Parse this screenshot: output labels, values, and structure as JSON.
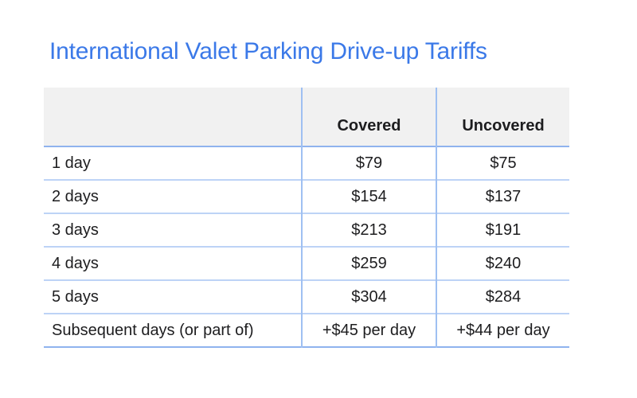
{
  "title": {
    "text": "International Valet Parking Drive-up Tariffs"
  },
  "theme": {
    "background": "#ffffff",
    "title_color": "#3b79e8",
    "text_color": "#1d1d1f",
    "header_bg": "#f1f1f1",
    "row_line": "#bdd3f6",
    "column_line": "#9fc0f2",
    "strong_line": "#8fb3ee"
  },
  "chart_data": {
    "type": "table",
    "title": "International Valet Parking Drive-up Tariffs",
    "columns": [
      "",
      "Covered",
      "Uncovered"
    ],
    "categories": [
      "1 day",
      "2 days",
      "3 days",
      "4 days",
      "5 days",
      "Subsequent days (or part of)"
    ],
    "rows": [
      [
        "1 day",
        "$79",
        "$75"
      ],
      [
        "2 days",
        "$154",
        "$137"
      ],
      [
        "3 days",
        "$213",
        "$191"
      ],
      [
        "4 days",
        "$259",
        "$240"
      ],
      [
        "5 days",
        "$304",
        "$284"
      ],
      [
        "Subsequent days (or part of)",
        "+$45 per day",
        "+$44 per day"
      ]
    ],
    "series": [
      {
        "name": "Covered",
        "values": [
          79,
          154,
          213,
          259,
          304
        ],
        "subsequent_per_day": "+$45 per day"
      },
      {
        "name": "Uncovered",
        "values": [
          75,
          137,
          191,
          240,
          284
        ],
        "subsequent_per_day": "+$44 per day"
      }
    ]
  }
}
